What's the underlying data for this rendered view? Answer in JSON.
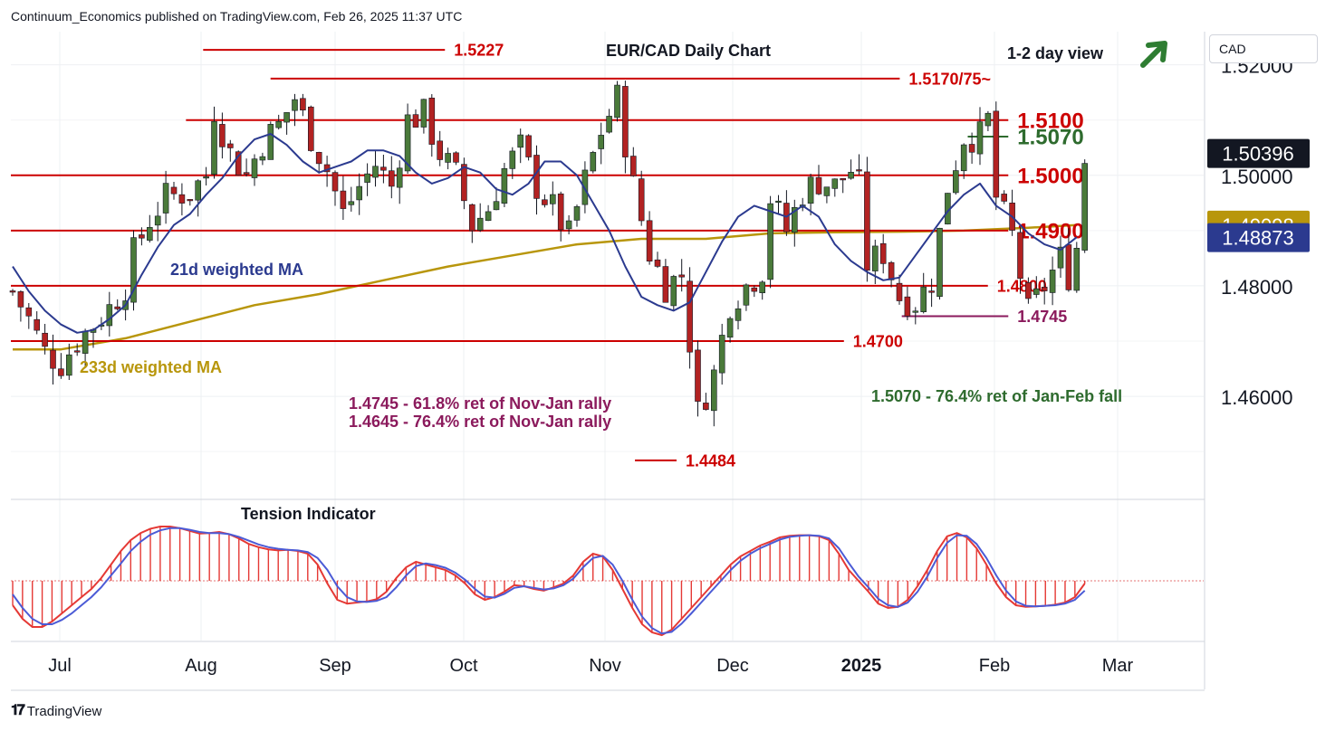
{
  "header": {
    "published": "Continuum_Economics published on TradingView.com, Feb 26, 2025 11:37 UTC"
  },
  "brand": {
    "name": "TradingView"
  },
  "currency_button": "CAD",
  "colors": {
    "up": "#4a7a3a",
    "down": "#b22222",
    "level_line": "#cc0000",
    "ma21": "#2b3a8f",
    "ma233": "#b8960c",
    "tension_line": "#4b5bd6",
    "tension_hist": "#e53935",
    "purple_text": "#8b1a5c",
    "green_text": "#2e6b2e",
    "arrow": "#2e7d32",
    "label_dark": "#131722",
    "label_gold": "#b8960c",
    "label_navy": "#2b3a8f"
  },
  "icons": {
    "trend_arrow": "up-right-arrow-icon",
    "brand_logo": "tradingview-logo-icon"
  },
  "chart_data": {
    "type": "candlestick",
    "title": "EUR/CAD Daily Chart",
    "view_label": "1-2 day view",
    "ylim": [
      1.442,
      1.526
    ],
    "y_ticks": [
      "1.52000",
      "1.50000",
      "1.48000",
      "1.46000"
    ],
    "x_ticks": [
      "Jul",
      "Aug",
      "Sep",
      "Oct",
      "Nov",
      "Dec",
      "2025",
      "Feb",
      "Mar"
    ],
    "price_labels": [
      {
        "text": "1.50396",
        "value": 1.50396,
        "style": "dark"
      },
      {
        "text": "1.49098",
        "value": 1.49098,
        "style": "gold"
      },
      {
        "text": "1.48873",
        "value": 1.48873,
        "style": "navy"
      }
    ],
    "levels": [
      {
        "value": 1.5227,
        "label": "1.5227",
        "start": 0.1612,
        "end": 0.3639,
        "size": "medium",
        "color": "#cc0000"
      },
      {
        "value": 1.5175,
        "label": "1.5170/75~",
        "start": 0.2177,
        "end": 0.7452,
        "size": "medium",
        "color": "#cc0000"
      },
      {
        "value": 1.51,
        "label": "1.5100",
        "start": 0.1468,
        "end": 0.8362,
        "size": "large",
        "color": "#cc0000"
      },
      {
        "value": 1.507,
        "label": "1.5070",
        "start": 0.8022,
        "end": 0.8362,
        "size": "large",
        "color": "#2e6b2e"
      },
      {
        "value": 1.5,
        "label": "1.5000",
        "start": 0.0,
        "end": 0.8362,
        "size": "large",
        "color": "#cc0000"
      },
      {
        "value": 1.49,
        "label": "1.4900",
        "start": 0.0,
        "end": 0.8362,
        "size": "large",
        "color": "#cc0000"
      },
      {
        "value": 1.48,
        "label": "1.4800",
        "start": 0.0,
        "end": 0.8191,
        "size": "medium",
        "color": "#cc0000"
      },
      {
        "value": 1.4745,
        "label": "1.4745",
        "start": 0.7469,
        "end": 0.8362,
        "size": "medium",
        "color": "#8b1a5c"
      },
      {
        "value": 1.47,
        "label": "1.4700",
        "start": 0.0,
        "end": 0.6984,
        "size": "medium",
        "color": "#cc0000"
      },
      {
        "value": 1.4484,
        "label": "1.4484",
        "start": 0.5232,
        "end": 0.5581,
        "size": "medium",
        "color": "#cc0000"
      }
    ],
    "annotations": [
      {
        "text": "21d weighted MA",
        "color": "#2b3a8f"
      },
      {
        "text": "233d weighted MA",
        "color": "#b8960c"
      },
      {
        "text": "1.4745 - 61.8% ret of Nov-Jan rally",
        "color": "#8b1a5c"
      },
      {
        "text": "1.4645 - 76.4% ret of Nov-Jan rally",
        "color": "#8b1a5c"
      },
      {
        "text": "1.5070 - 76.4% ret of Jan-Feb fall",
        "color": "#2e6b2e"
      }
    ],
    "indicator": {
      "title": "Tension Indicator"
    },
    "ma21_points": [
      [
        0,
        1.4835
      ],
      [
        2,
        1.479
      ],
      [
        4,
        1.4755
      ],
      [
        6,
        1.473
      ],
      [
        8,
        1.4715
      ],
      [
        10,
        1.472
      ],
      [
        12,
        1.474
      ],
      [
        14,
        1.4765
      ],
      [
        16,
        1.482
      ],
      [
        18,
        1.487
      ],
      [
        20,
        1.491
      ],
      [
        22,
        1.493
      ],
      [
        24,
        1.4965
      ],
      [
        26,
        1.4995
      ],
      [
        28,
        1.5035
      ],
      [
        30,
        1.5065
      ],
      [
        32,
        1.5075
      ],
      [
        34,
        1.5055
      ],
      [
        36,
        1.5025
      ],
      [
        38,
        1.5005
      ],
      [
        40,
        1.5015
      ],
      [
        42,
        1.5025
      ],
      [
        44,
        1.5045
      ],
      [
        46,
        1.5045
      ],
      [
        48,
        1.5035
      ],
      [
        50,
        1.5005
      ],
      [
        52,
        1.4985
      ],
      [
        54,
        1.4995
      ],
      [
        56,
        1.5015
      ],
      [
        58,
        1.5005
      ],
      [
        60,
        1.4975
      ],
      [
        62,
        1.4965
      ],
      [
        64,
        1.4985
      ],
      [
        66,
        1.5025
      ],
      [
        68,
        1.5025
      ],
      [
        70,
        1.5
      ],
      [
        72,
        1.495
      ],
      [
        74,
        1.49
      ],
      [
        76,
        1.4835
      ],
      [
        78,
        1.478
      ],
      [
        80,
        1.4765
      ],
      [
        82,
        1.4755
      ],
      [
        84,
        1.477
      ],
      [
        86,
        1.4825
      ],
      [
        88,
        1.488
      ],
      [
        90,
        1.4925
      ],
      [
        92,
        1.4945
      ],
      [
        94,
        1.4935
      ],
      [
        96,
        1.4925
      ],
      [
        98,
        1.4945
      ],
      [
        100,
        1.4925
      ],
      [
        102,
        1.4875
      ],
      [
        104,
        1.4845
      ],
      [
        106,
        1.4825
      ],
      [
        108,
        1.481
      ],
      [
        110,
        1.4815
      ],
      [
        112,
        1.4855
      ],
      [
        114,
        1.4895
      ],
      [
        116,
        1.4935
      ],
      [
        118,
        1.4965
      ],
      [
        120,
        1.4985
      ],
      [
        122,
        1.4945
      ],
      [
        124,
        1.4925
      ],
      [
        126,
        1.4895
      ],
      [
        128,
        1.4875
      ],
      [
        130,
        1.4865
      ],
      [
        132,
        1.4888
      ]
    ],
    "ma233_points": [
      [
        0,
        1.4685
      ],
      [
        6,
        1.4685
      ],
      [
        14,
        1.4705
      ],
      [
        22,
        1.4735
      ],
      [
        30,
        1.4765
      ],
      [
        38,
        1.4785
      ],
      [
        46,
        1.481
      ],
      [
        54,
        1.4835
      ],
      [
        62,
        1.4855
      ],
      [
        70,
        1.4875
      ],
      [
        78,
        1.4885
      ],
      [
        86,
        1.4885
      ],
      [
        94,
        1.4895
      ],
      [
        102,
        1.4897
      ],
      [
        110,
        1.4898
      ],
      [
        118,
        1.49
      ],
      [
        126,
        1.4905
      ],
      [
        132,
        1.491
      ]
    ],
    "tension_hist": [
      -0.45,
      -0.7,
      -0.85,
      -0.85,
      -0.75,
      -0.6,
      -0.45,
      -0.3,
      -0.15,
      0.05,
      0.3,
      0.55,
      0.75,
      0.88,
      0.96,
      1.0,
      1.0,
      0.97,
      0.92,
      0.87,
      0.88,
      0.9,
      0.86,
      0.78,
      0.68,
      0.62,
      0.58,
      0.56,
      0.57,
      0.55,
      0.5,
      0.3,
      -0.05,
      -0.35,
      -0.42,
      -0.4,
      -0.38,
      -0.34,
      -0.2,
      0.05,
      0.25,
      0.35,
      0.3,
      0.25,
      0.2,
      0.1,
      -0.05,
      -0.25,
      -0.35,
      -0.3,
      -0.2,
      -0.08,
      -0.1,
      -0.15,
      -0.18,
      -0.12,
      -0.05,
      0.1,
      0.35,
      0.5,
      0.45,
      0.2,
      -0.15,
      -0.5,
      -0.8,
      -0.95,
      -1.0,
      -0.9,
      -0.7,
      -0.5,
      -0.3,
      -0.1,
      0.1,
      0.3,
      0.45,
      0.55,
      0.65,
      0.72,
      0.8,
      0.83,
      0.84,
      0.84,
      0.82,
      0.75,
      0.5,
      0.2,
      0.0,
      -0.2,
      -0.42,
      -0.5,
      -0.48,
      -0.35,
      -0.1,
      0.2,
      0.55,
      0.82,
      0.88,
      0.8,
      0.6,
      0.3,
      -0.05,
      -0.3,
      -0.45,
      -0.48,
      -0.47,
      -0.46,
      -0.44,
      -0.4,
      -0.3,
      -0.05
    ],
    "tension_line": [
      -0.25,
      -0.5,
      -0.7,
      -0.8,
      -0.8,
      -0.72,
      -0.6,
      -0.45,
      -0.3,
      -0.12,
      0.1,
      0.32,
      0.55,
      0.72,
      0.85,
      0.93,
      0.97,
      0.97,
      0.94,
      0.9,
      0.88,
      0.88,
      0.86,
      0.81,
      0.74,
      0.67,
      0.62,
      0.59,
      0.57,
      0.56,
      0.53,
      0.42,
      0.2,
      -0.1,
      -0.3,
      -0.38,
      -0.39,
      -0.37,
      -0.3,
      -0.12,
      0.1,
      0.27,
      0.32,
      0.29,
      0.24,
      0.15,
      0.02,
      -0.15,
      -0.29,
      -0.31,
      -0.24,
      -0.13,
      -0.1,
      -0.13,
      -0.16,
      -0.14,
      -0.08,
      0.04,
      0.25,
      0.42,
      0.46,
      0.3,
      0.0,
      -0.35,
      -0.66,
      -0.87,
      -0.97,
      -0.94,
      -0.79,
      -0.6,
      -0.4,
      -0.2,
      0.0,
      0.2,
      0.37,
      0.5,
      0.6,
      0.68,
      0.76,
      0.81,
      0.83,
      0.84,
      0.83,
      0.78,
      0.6,
      0.33,
      0.08,
      -0.12,
      -0.33,
      -0.45,
      -0.48,
      -0.4,
      -0.2,
      0.08,
      0.42,
      0.7,
      0.84,
      0.83,
      0.68,
      0.42,
      0.1,
      -0.18,
      -0.38,
      -0.46,
      -0.47,
      -0.46,
      -0.45,
      -0.42,
      -0.35,
      -0.18
    ]
  }
}
